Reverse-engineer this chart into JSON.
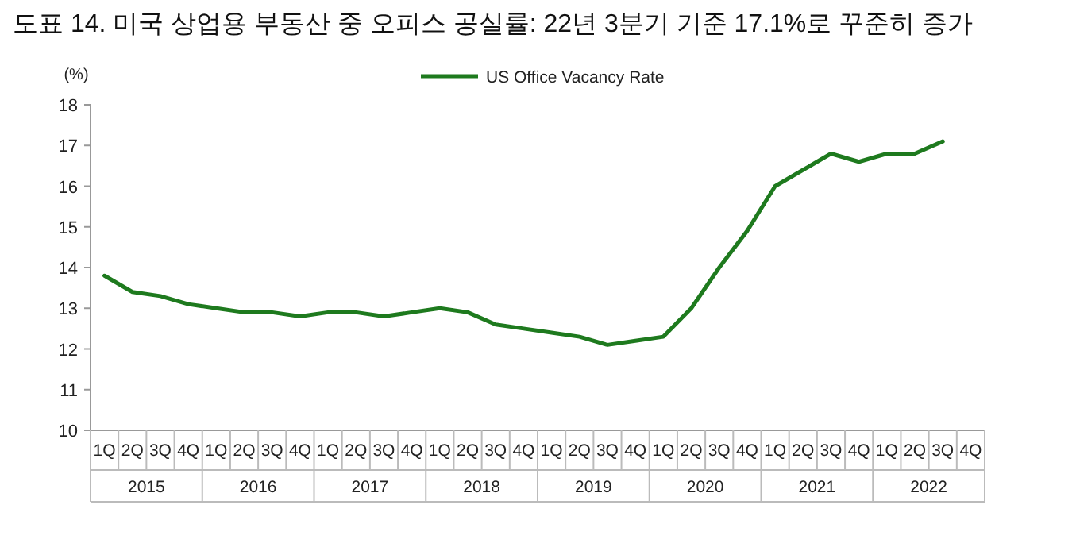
{
  "chart_data": {
    "type": "line",
    "title": "도표 14. 미국 상업용 부동산 중 오피스 공실률: 22년 3분기 기준 17.1%로 꾸준히 증가",
    "ylabel": "(%)",
    "categories": [
      "1Q",
      "2Q",
      "3Q",
      "4Q",
      "1Q",
      "2Q",
      "3Q",
      "4Q",
      "1Q",
      "2Q",
      "3Q",
      "4Q",
      "1Q",
      "2Q",
      "3Q",
      "4Q",
      "1Q",
      "2Q",
      "3Q",
      "4Q",
      "1Q",
      "2Q",
      "3Q",
      "4Q",
      "1Q",
      "2Q",
      "3Q",
      "4Q",
      "1Q",
      "2Q",
      "3Q",
      "4Q"
    ],
    "annotations": [
      "2015",
      "2016",
      "2017",
      "2018",
      "2019",
      "2020",
      "2021",
      "2022"
    ],
    "series": [
      {
        "name": "US Office Vacancy Rate",
        "color": "#1e7a1e",
        "values": [
          13.8,
          13.4,
          13.3,
          13.1,
          13.0,
          12.9,
          12.9,
          12.8,
          12.9,
          12.9,
          12.8,
          12.9,
          13.0,
          12.9,
          12.6,
          12.5,
          12.4,
          12.3,
          12.1,
          12.2,
          12.3,
          13.0,
          14.0,
          14.9,
          16.0,
          16.4,
          16.8,
          16.6,
          16.8,
          16.8,
          17.1,
          null
        ]
      }
    ],
    "ylim": [
      10,
      18
    ],
    "yticks": [
      10,
      11,
      12,
      13,
      14,
      15,
      16,
      17,
      18
    ],
    "legend": "top",
    "grid": false,
    "marker": "none",
    "line_style": "solid"
  }
}
